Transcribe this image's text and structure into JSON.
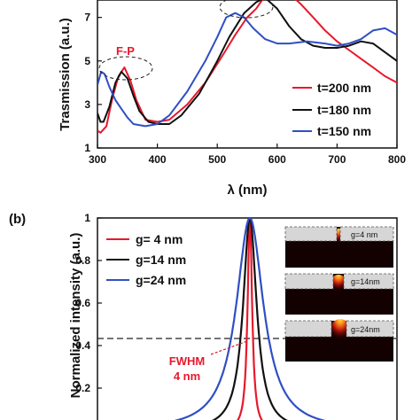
{
  "chart_data": [
    {
      "type": "line",
      "panel_label": "",
      "title": "",
      "xlabel": "λ (nm)",
      "ylabel": "Trasmission (a.u.)",
      "xlim": [
        300,
        800
      ],
      "ylim": [
        1,
        7.8
      ],
      "x_ticks": [
        300,
        400,
        500,
        600,
        700,
        800
      ],
      "y_ticks": [
        1,
        3,
        5,
        7
      ],
      "legend_position": "bottom-right",
      "series": [
        {
          "name": "t=200 nm",
          "color": "#e8182b",
          "x": [
            300,
            305,
            315,
            325,
            335,
            345,
            355,
            365,
            380,
            400,
            420,
            450,
            480,
            510,
            530,
            550,
            565,
            575,
            580,
            600,
            620,
            640,
            660,
            680,
            700,
            720,
            740,
            760,
            780,
            800
          ],
          "y": [
            1.8,
            1.7,
            2.0,
            3.3,
            4.3,
            4.7,
            4.1,
            3.2,
            2.3,
            2.2,
            2.3,
            3.0,
            4.0,
            5.3,
            6.2,
            7.0,
            7.4,
            7.8,
            8.2,
            8.4,
            8.1,
            7.6,
            7.0,
            6.4,
            5.9,
            5.5,
            5.1,
            4.7,
            4.3,
            4.0
          ]
        },
        {
          "name": "t=180 nm",
          "color": "#111111",
          "x": [
            300,
            305,
            310,
            320,
            330,
            340,
            350,
            360,
            370,
            385,
            400,
            420,
            440,
            470,
            500,
            520,
            545,
            565,
            580,
            600,
            620,
            640,
            660,
            680,
            700,
            720,
            740,
            760,
            780,
            800
          ],
          "y": [
            2.6,
            2.2,
            2.2,
            2.9,
            4.0,
            4.5,
            4.2,
            3.4,
            2.7,
            2.2,
            2.1,
            2.1,
            2.5,
            3.5,
            5.0,
            6.1,
            7.2,
            7.7,
            7.9,
            7.4,
            6.6,
            6.0,
            5.7,
            5.6,
            5.6,
            5.7,
            5.9,
            5.8,
            5.4,
            5.0
          ]
        },
        {
          "name": "t=150 nm",
          "color": "#2f4fc4",
          "x": [
            300,
            306,
            312,
            320,
            330,
            340,
            350,
            360,
            380,
            400,
            420,
            450,
            480,
            500,
            515,
            530,
            545,
            560,
            580,
            600,
            620,
            650,
            680,
            700,
            720,
            740,
            760,
            780,
            800
          ],
          "y": [
            3.9,
            4.5,
            4.4,
            3.8,
            3.2,
            2.8,
            2.4,
            2.1,
            2.0,
            2.1,
            2.5,
            3.6,
            5.0,
            6.1,
            7.0,
            7.2,
            7.0,
            6.5,
            6.0,
            5.8,
            5.8,
            5.9,
            5.8,
            5.7,
            5.8,
            6.0,
            6.4,
            6.5,
            6.2
          ]
        }
      ],
      "annotations": [
        {
          "text": "F-P",
          "color": "#e8182b"
        }
      ]
    },
    {
      "type": "line",
      "panel_label": "(b)",
      "title": "",
      "xlabel": "",
      "ylabel": "Normalized intensity (a.u.)",
      "ylim": [
        0,
        1
      ],
      "y_ticks": [
        0.2,
        0.4,
        0.6,
        0.8,
        1
      ],
      "y_tick_labels": [
        "0.2",
        "0.4",
        "0.6",
        "0.8",
        "1"
      ],
      "legend_position": "top-left",
      "center": 0,
      "series": [
        {
          "name": "g= 4 nm",
          "color": "#e8182b",
          "fwhm": 4
        },
        {
          "name": "g=14 nm",
          "color": "#111111",
          "fwhm": 12
        },
        {
          "name": "g=24 nm",
          "color": "#2f4fc4",
          "fwhm": 24
        }
      ],
      "half_max_line": 0.43,
      "annotations": [
        {
          "line1": "FWHM",
          "line2": "4 nm",
          "color": "#e8182b"
        }
      ],
      "insets": [
        {
          "label": "g=4 nm"
        },
        {
          "label": "g=14nm"
        },
        {
          "label": "g=24nm"
        }
      ]
    }
  ]
}
